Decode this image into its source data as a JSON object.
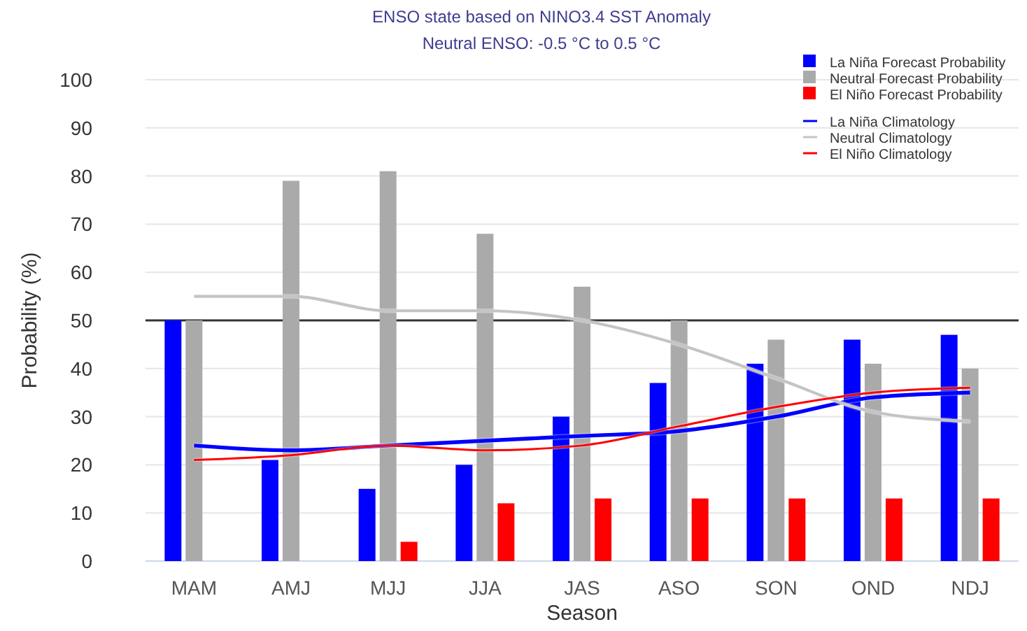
{
  "chart_data": {
    "type": "bar",
    "title": "ENSO state based on NINO3.4 SST Anomaly",
    "subtitle": "Neutral ENSO: -0.5 °C to 0.5 °C",
    "xlabel": "Season",
    "ylabel": "Probability (%)",
    "categories": [
      "MAM",
      "AMJ",
      "MJJ",
      "JJA",
      "JAS",
      "ASO",
      "SON",
      "OND",
      "NDJ"
    ],
    "series": [
      {
        "name": "La Niña Forecast Probability",
        "color": "#0000ff",
        "values": [
          50,
          21,
          15,
          20,
          30,
          37,
          41,
          46,
          47
        ]
      },
      {
        "name": "Neutral Forecast Probability",
        "color": "#aaaaaa",
        "values": [
          50,
          79,
          81,
          68,
          57,
          50,
          46,
          41,
          40
        ]
      },
      {
        "name": "El Niño Forecast Probability",
        "color": "#ff0000",
        "values": [
          0,
          0,
          4,
          12,
          13,
          13,
          13,
          13,
          13
        ]
      },
      {
        "name": "La Niña Climatology",
        "type": "line",
        "color": "#0000ff",
        "values": [
          24,
          23,
          24,
          25,
          26,
          27,
          30,
          34,
          35
        ]
      },
      {
        "name": "Neutral Climatology",
        "type": "line",
        "color": "#c4c4c4",
        "values": [
          55,
          55,
          52,
          52,
          50,
          45,
          38,
          31,
          29
        ]
      },
      {
        "name": "El Niño Climatology",
        "type": "line",
        "color": "#ff0000",
        "values": [
          21,
          22,
          24,
          23,
          24,
          28,
          32,
          35,
          36
        ]
      }
    ],
    "ylim": [
      0,
      100
    ],
    "yticks": [
      0,
      10,
      20,
      30,
      40,
      50,
      60,
      70,
      80,
      90,
      100
    ],
    "grid": "y",
    "legend": "top right",
    "marker": "none",
    "line_style": "solid",
    "ref_lines": [
      {
        "axis": "y",
        "value": 50,
        "color": "#333333"
      }
    ]
  }
}
